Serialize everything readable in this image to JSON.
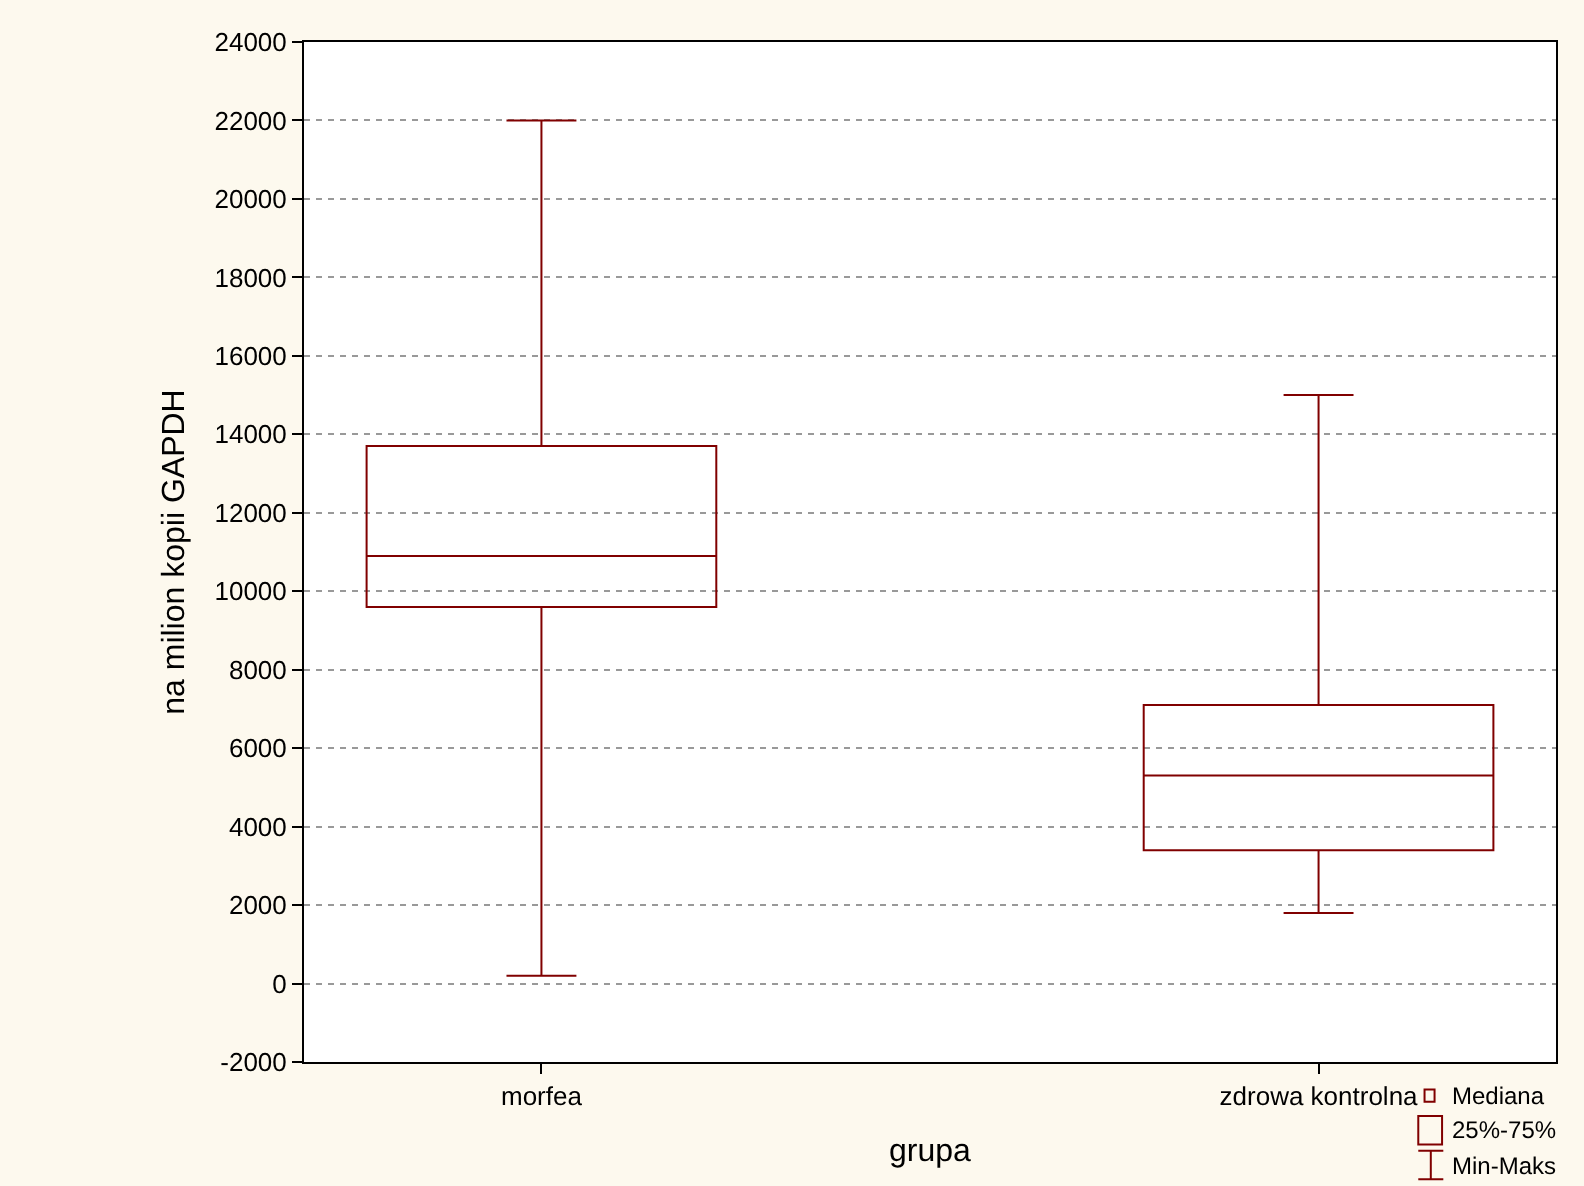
{
  "chart_data": {
    "type": "box",
    "xlabel": "grupa",
    "ylabel": "na milion kopii GAPDH",
    "categories": [
      "morfea",
      "zdrowa kontrolna"
    ],
    "boxes": [
      {
        "low": 200,
        "q1": 9600,
        "median": 10900,
        "q3": 13700,
        "high": 22000
      },
      {
        "low": 1800,
        "q1": 3400,
        "median": 5300,
        "q3": 7100,
        "high": 15000
      }
    ],
    "color": "#800000",
    "ylim": [
      -2000,
      24000
    ],
    "yticks": [
      -2000,
      0,
      2000,
      4000,
      6000,
      8000,
      10000,
      12000,
      14000,
      16000,
      18000,
      20000,
      22000,
      24000
    ],
    "grid": "y",
    "annotations": [
      "Mediana",
      "25%-75%",
      "Min-Maks"
    ]
  }
}
